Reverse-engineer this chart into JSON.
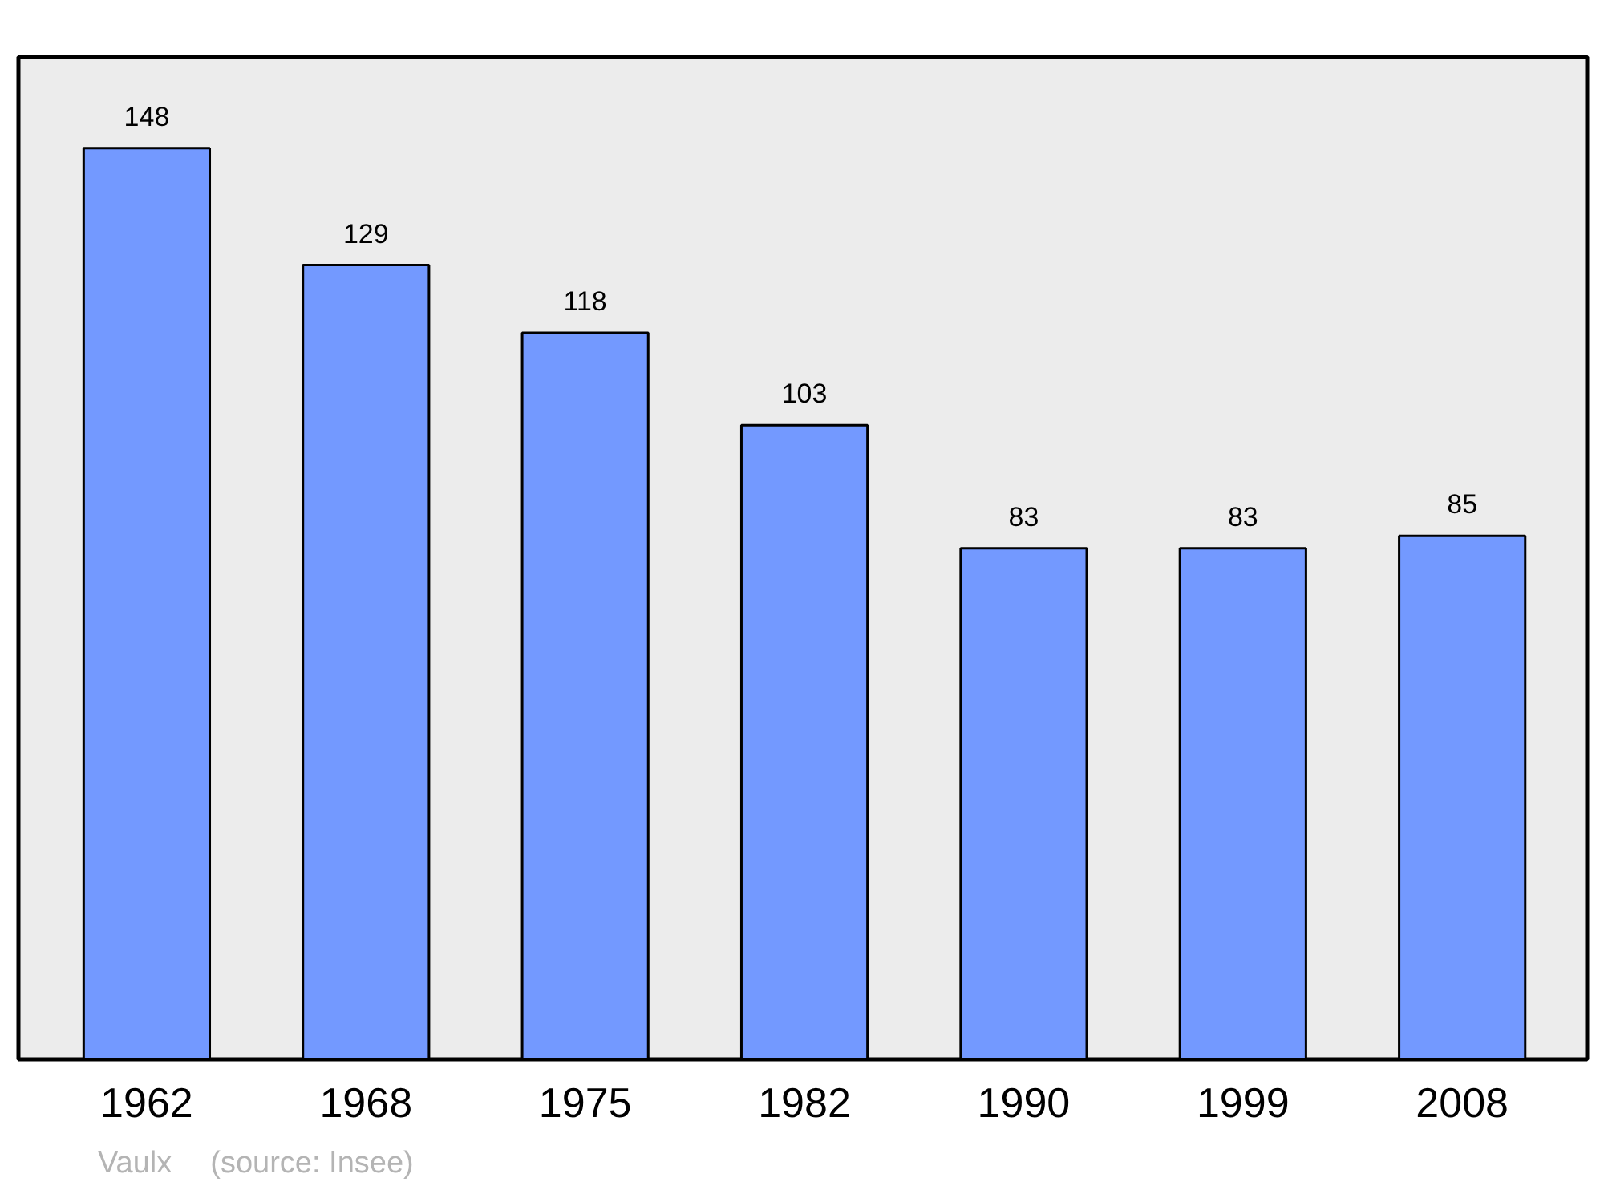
{
  "chart_data": {
    "type": "bar",
    "categories": [
      "1962",
      "1968",
      "1975",
      "1982",
      "1990",
      "1999",
      "2008"
    ],
    "values": [
      148,
      129,
      118,
      103,
      83,
      83,
      85
    ],
    "color": "#7399ff",
    "data_labels": true,
    "grid": false,
    "tick_labels": "x",
    "annotations": [
      "Vaulx",
      "(source: Insee)"
    ]
  }
}
